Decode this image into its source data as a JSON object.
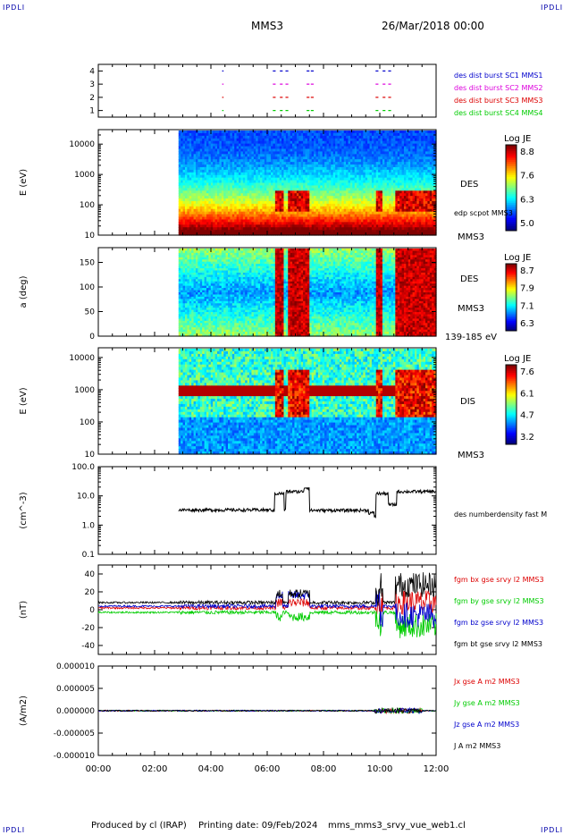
{
  "corners": {
    "tl": "IPDLI",
    "tr": "IPDLI",
    "bl": "IPDLI",
    "br": "IPDLI"
  },
  "header": {
    "mission": "MMS3",
    "datetime": "26/Mar/2018 00:00"
  },
  "footer": {
    "produced": "Produced by cl (IRAP)",
    "printing": "Printing date: 09/Feb/2024",
    "file": "mms_mms3_srvy_vue_web1.cl"
  },
  "colors": {
    "red": "#dd0000",
    "green": "#00cc00",
    "blue": "#0000cc",
    "magenta": "#dd00dd",
    "black": "#000000"
  },
  "chart_data": [
    {
      "type": "scatter",
      "panel": "burst-flags",
      "y_ticks": [
        "1",
        "2",
        "3",
        "4"
      ],
      "ylim": [
        0.5,
        4.5
      ],
      "xlim": [
        0,
        12
      ],
      "legend": [
        {
          "label": "des dist burst SC1 MMS1",
          "color": "#0000cc",
          "y": 4
        },
        {
          "label": "des dist burst SC2 MMS2",
          "color": "#dd00dd",
          "y": 3
        },
        {
          "label": "des dist burst SC3 MMS3",
          "color": "#dd0000",
          "y": 2
        },
        {
          "label": "des dist burst SC4 MMS4",
          "color": "#00cc00",
          "y": 1
        }
      ],
      "intervals": [
        [
          4.4,
          4.45
        ],
        [
          6.2,
          6.3
        ],
        [
          6.45,
          6.55
        ],
        [
          6.65,
          6.75
        ],
        [
          7.4,
          7.5
        ],
        [
          7.55,
          7.65
        ],
        [
          9.85,
          9.95
        ],
        [
          10.1,
          10.2
        ],
        [
          10.3,
          10.4
        ]
      ]
    },
    {
      "type": "heatmap",
      "panel": "des-energy",
      "ylabel": "E (eV)",
      "y_scale": "log",
      "ylim": [
        10,
        30000
      ],
      "y_ticks": [
        "10",
        "100",
        "1000",
        "10000"
      ],
      "right_labels": [
        "DES",
        "edp scpot MMS3",
        "MMS3"
      ],
      "colorbar": {
        "title": "Log JE",
        "ticks": [
          "8.8",
          "7.6",
          "6.3",
          "5.0"
        ],
        "range": [
          5.0,
          8.8
        ]
      },
      "data_start_hour": 2.85
    },
    {
      "type": "heatmap",
      "panel": "des-pitch",
      "ylabel": "a (deg)",
      "ylim": [
        0,
        180
      ],
      "y_ticks": [
        "0",
        "50",
        "100",
        "150"
      ],
      "right_labels": [
        "DES",
        "MMS3",
        "139-185 eV"
      ],
      "colorbar": {
        "title": "Log JE",
        "ticks": [
          "8.7",
          "7.9",
          "7.1",
          "6.3"
        ],
        "range": [
          6.3,
          8.7
        ]
      }
    },
    {
      "type": "heatmap",
      "panel": "dis-energy",
      "ylabel": "E (eV)",
      "y_scale": "log",
      "ylim": [
        10,
        20000
      ],
      "y_ticks": [
        "10",
        "100",
        "1000",
        "10000"
      ],
      "right_labels": [
        "DIS",
        "MMS3"
      ],
      "colorbar": {
        "title": "Log JE",
        "ticks": [
          "7.6",
          "6.1",
          "4.7",
          "3.2"
        ],
        "range": [
          3.2,
          7.6
        ]
      }
    },
    {
      "type": "line",
      "panel": "density",
      "ylabel": "(cm^-3)",
      "y_scale": "log",
      "ylim": [
        0.1,
        100
      ],
      "y_ticks": [
        "0.1",
        "1.0",
        "10.0",
        "100.0"
      ],
      "series": [
        {
          "name": "des numberdensity fast M",
          "color": "#000000"
        }
      ],
      "levels": [
        [
          2.85,
          3.3
        ],
        [
          6.2,
          3.0
        ],
        [
          6.25,
          12
        ],
        [
          6.6,
          3.2
        ],
        [
          6.65,
          14
        ],
        [
          7.2,
          14
        ],
        [
          7.3,
          19
        ],
        [
          7.5,
          3.2
        ],
        [
          9.6,
          2.6
        ],
        [
          9.8,
          2.0
        ],
        [
          9.85,
          12
        ],
        [
          10.3,
          5.0
        ],
        [
          10.6,
          14
        ],
        [
          12,
          16
        ]
      ]
    },
    {
      "type": "line",
      "panel": "magnetic-field",
      "ylabel": "(nT)",
      "ylim": [
        -50,
        50
      ],
      "y_ticks": [
        "-40",
        "-20",
        "0",
        "20",
        "40"
      ],
      "series": [
        {
          "name": "fgm bx gse srvy l2 MMS3",
          "color": "#dd0000"
        },
        {
          "name": "fgm by gse srvy l2 MMS3",
          "color": "#00cc00"
        },
        {
          "name": "fgm bz gse srvy l2 MMS3",
          "color": "#0000cc"
        },
        {
          "name": "fgm bt gse srvy l2 MMS3",
          "color": "#000000"
        }
      ]
    },
    {
      "type": "line",
      "panel": "current-density",
      "ylabel": "(A/m2)",
      "ylim": [
        -1e-05,
        1e-05
      ],
      "y_ticks": [
        "-0.000010",
        "-0.000005",
        "0.000000",
        "0.000005",
        "0.000010"
      ],
      "series": [
        {
          "name": "Jx gse A m2 MMS3",
          "color": "#dd0000"
        },
        {
          "name": "Jy gse A m2 MMS3",
          "color": "#00cc00"
        },
        {
          "name": "Jz gse A m2 MMS3",
          "color": "#0000cc"
        },
        {
          "name": "J A m2 MMS3",
          "color": "#000000"
        }
      ]
    }
  ],
  "x_axis": {
    "ticks": [
      "00:00",
      "02:00",
      "04:00",
      "06:00",
      "08:00",
      "10:00",
      "12:00"
    ],
    "range_hours": [
      0,
      12
    ]
  }
}
